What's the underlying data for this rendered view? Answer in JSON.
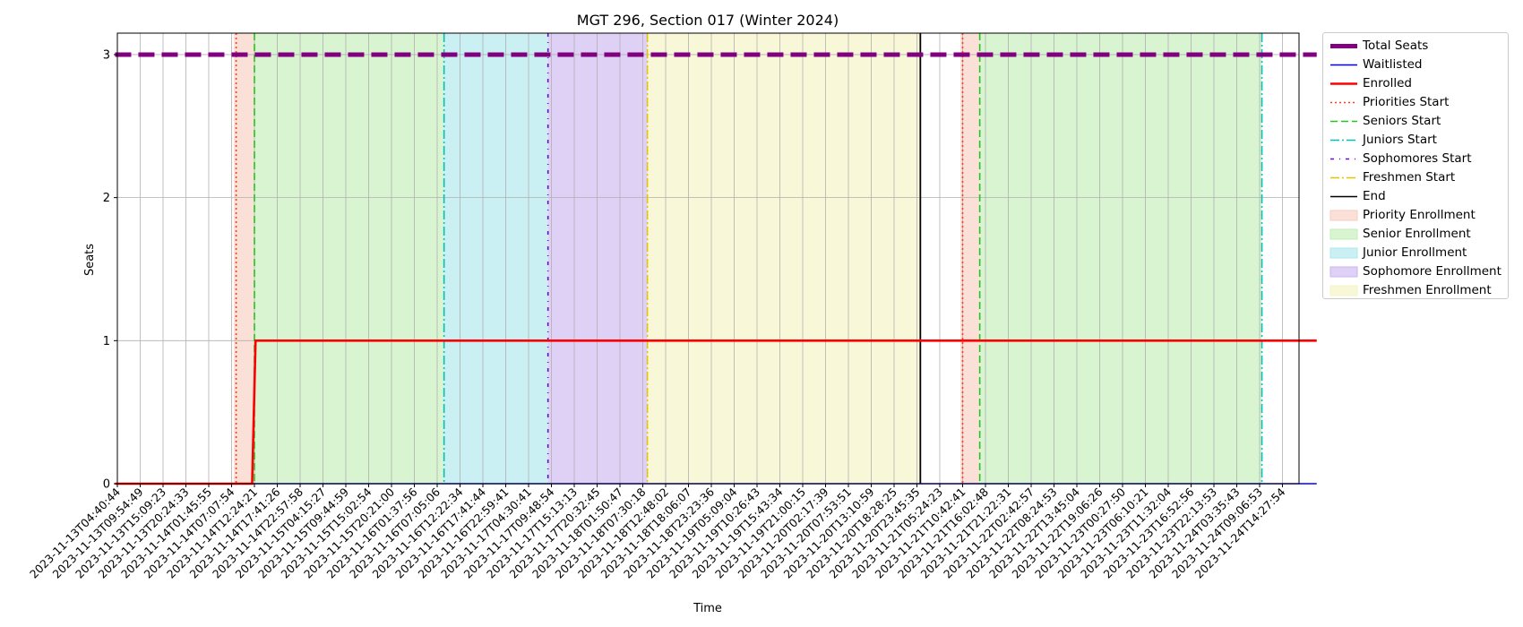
{
  "chart_data": {
    "type": "line",
    "title": "MGT 296, Section 017 (Winter 2024)",
    "xlabel": "Time",
    "ylabel": "Seats",
    "ylim": [
      0,
      3.15
    ],
    "yticks": [
      "0",
      "1",
      "2",
      "3"
    ],
    "grid": true,
    "legend_position": "outside-right",
    "x_ticks": [
      "2023-11-13T04:40:44",
      "2023-11-13T09:54:49",
      "2023-11-13T15:09:23",
      "2023-11-13T20:24:33",
      "2023-11-14T01:45:55",
      "2023-11-14T07:07:54",
      "2023-11-14T12:24:21",
      "2023-11-14T17:41:26",
      "2023-11-14T22:57:58",
      "2023-11-15T04:15:27",
      "2023-11-15T09:44:59",
      "2023-11-15T15:02:54",
      "2023-11-15T20:21:00",
      "2023-11-16T01:37:56",
      "2023-11-16T07:05:06",
      "2023-11-16T12:22:34",
      "2023-11-16T17:41:44",
      "2023-11-16T22:59:41",
      "2023-11-17T04:30:41",
      "2023-11-17T09:48:54",
      "2023-11-17T15:13:13",
      "2023-11-17T20:32:45",
      "2023-11-18T01:50:47",
      "2023-11-18T07:30:18",
      "2023-11-18T12:48:02",
      "2023-11-18T18:06:07",
      "2023-11-18T23:23:36",
      "2023-11-19T05:09:04",
      "2023-11-19T10:26:43",
      "2023-11-19T15:43:34",
      "2023-11-19T21:00:15",
      "2023-11-20T02:17:39",
      "2023-11-20T07:53:51",
      "2023-11-20T13:10:59",
      "2023-11-20T18:28:25",
      "2023-11-20T23:45:35",
      "2023-11-21T05:24:23",
      "2023-11-21T10:42:41",
      "2023-11-21T16:02:48",
      "2023-11-21T21:22:31",
      "2023-11-22T02:42:57",
      "2023-11-22T08:24:53",
      "2023-11-22T13:45:04",
      "2023-11-22T19:06:26",
      "2023-11-23T00:27:50",
      "2023-11-23T06:10:21",
      "2023-11-23T11:32:04",
      "2023-11-23T16:52:56",
      "2023-11-23T22:13:53",
      "2023-11-24T03:35:43",
      "2023-11-24T09:06:53",
      "2023-11-24T14:27:54"
    ],
    "x_range_ticks": [
      -0.1,
      52.5
    ],
    "series": [
      {
        "name": "Total Seats",
        "style": "dashed-thick",
        "color": "#800080",
        "x": [
          -0.1,
          52.5
        ],
        "y": [
          3,
          3
        ]
      },
      {
        "name": "Waitlisted",
        "style": "solid",
        "color": "#0000ff",
        "x": [
          -0.1,
          52.5
        ],
        "y": [
          0,
          0
        ]
      },
      {
        "name": "Enrolled",
        "style": "solid-thick",
        "color": "#ff0000",
        "x": [
          -0.1,
          5.9,
          6.05,
          52.5
        ],
        "y": [
          0,
          0,
          1,
          1
        ]
      }
    ],
    "vertical_markers": [
      {
        "name": "Priorities Start",
        "style": "dotted",
        "color": "#ff3b1f",
        "x": [
          5.2,
          37.0
        ]
      },
      {
        "name": "Seniors Start",
        "style": "dashed",
        "color": "#22c522",
        "x": [
          6.0,
          37.75
        ]
      },
      {
        "name": "Juniors Start",
        "style": "dashdot",
        "color": "#00bfbf",
        "x": [
          14.3,
          50.1
        ]
      },
      {
        "name": "Sophomores Start",
        "style": "dashdot-sparse",
        "color": "#6a0dcc",
        "x": [
          18.85
        ]
      },
      {
        "name": "Freshmen Start",
        "style": "dashdot",
        "color": "#e6c300",
        "x": [
          23.2
        ]
      },
      {
        "name": "End",
        "style": "solid",
        "color": "#000000",
        "x": [
          35.15
        ]
      }
    ],
    "spans": [
      {
        "name": "Priority Enrollment",
        "color": "#f7cdbf",
        "ranges": [
          [
            5.1,
            6.0
          ],
          [
            36.9,
            37.75
          ]
        ]
      },
      {
        "name": "Senior Enrollment",
        "color": "#c0eeb4",
        "ranges": [
          [
            6.0,
            14.3
          ],
          [
            37.75,
            50.1
          ]
        ]
      },
      {
        "name": "Junior Enrollment",
        "color": "#a9e7ec",
        "ranges": [
          [
            14.3,
            18.85
          ]
        ]
      },
      {
        "name": "Sophomore Enrollment",
        "color": "#cbb3f0",
        "ranges": [
          [
            18.85,
            23.2
          ]
        ]
      },
      {
        "name": "Freshmen Enrollment",
        "color": "#f4f4c2",
        "ranges": [
          [
            23.2,
            35.15
          ]
        ]
      }
    ]
  },
  "legend": [
    {
      "label": "Total Seats",
      "kind": "line",
      "color": "#800080",
      "style": "thick"
    },
    {
      "label": "Waitlisted",
      "kind": "line",
      "color": "#0000ff",
      "style": "solid"
    },
    {
      "label": "Enrolled",
      "kind": "line",
      "color": "#ff0000",
      "style": "solid-thick"
    },
    {
      "label": "Priorities Start",
      "kind": "line",
      "color": "#ff3b1f",
      "style": "dotted"
    },
    {
      "label": "Seniors Start",
      "kind": "line",
      "color": "#22c522",
      "style": "dashed"
    },
    {
      "label": "Juniors Start",
      "kind": "line",
      "color": "#00bfbf",
      "style": "dashdot"
    },
    {
      "label": "Sophomores Start",
      "kind": "line",
      "color": "#6a0dcc",
      "style": "dashdot-sparse"
    },
    {
      "label": "Freshmen Start",
      "kind": "line",
      "color": "#e6c300",
      "style": "dashdot"
    },
    {
      "label": "End",
      "kind": "line",
      "color": "#000000",
      "style": "solid"
    },
    {
      "label": "Priority Enrollment",
      "kind": "patch",
      "color": "#f7cdbf"
    },
    {
      "label": "Senior Enrollment",
      "kind": "patch",
      "color": "#c0eeb4"
    },
    {
      "label": "Junior Enrollment",
      "kind": "patch",
      "color": "#a9e7ec"
    },
    {
      "label": "Sophomore Enrollment",
      "kind": "patch",
      "color": "#cbb3f0"
    },
    {
      "label": "Freshmen Enrollment",
      "kind": "patch",
      "color": "#f4f4c2"
    }
  ]
}
